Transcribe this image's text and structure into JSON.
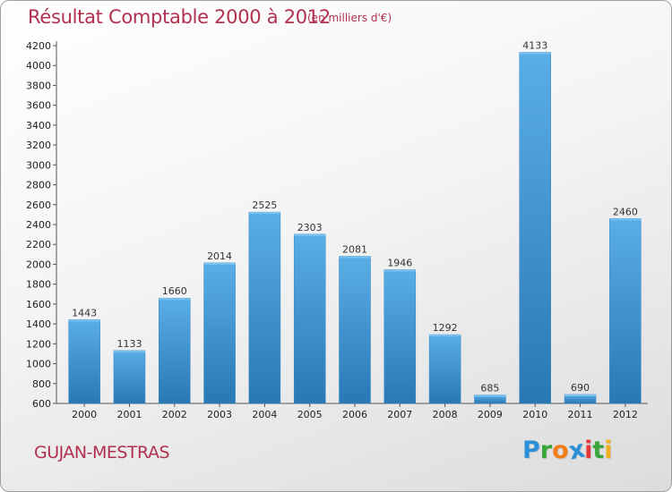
{
  "chart_data": {
    "type": "bar",
    "title": "Résultat Comptable 2000 à 2012",
    "subtitle": "(en milliers d'€)",
    "categories": [
      "2000",
      "2001",
      "2002",
      "2003",
      "2004",
      "2005",
      "2006",
      "2007",
      "2008",
      "2009",
      "2010",
      "2011",
      "2012"
    ],
    "values": [
      1443,
      1133,
      1660,
      2014,
      2525,
      2303,
      2081,
      1946,
      1292,
      685,
      4133,
      690,
      2460
    ],
    "ylim": [
      600,
      4200
    ],
    "yticks": [
      600,
      800,
      1000,
      1200,
      1400,
      1600,
      1800,
      2000,
      2200,
      2400,
      2600,
      2800,
      3000,
      3200,
      3400,
      3600,
      3800,
      4000,
      4200
    ],
    "xlabel": "",
    "ylabel": "",
    "grid": false,
    "bar_color": "#3b96d8"
  },
  "footer": {
    "city": "GUJAN-MESTRAS",
    "logo_letters": [
      "P",
      "r",
      "o",
      "x",
      "i",
      "t",
      "i"
    ],
    "logo_colors": [
      "#2a8fd6",
      "#3aa63a",
      "#f07d1a",
      "#2a8fd6",
      "#e23a3a",
      "#3aa63a",
      "#f0b020"
    ]
  }
}
